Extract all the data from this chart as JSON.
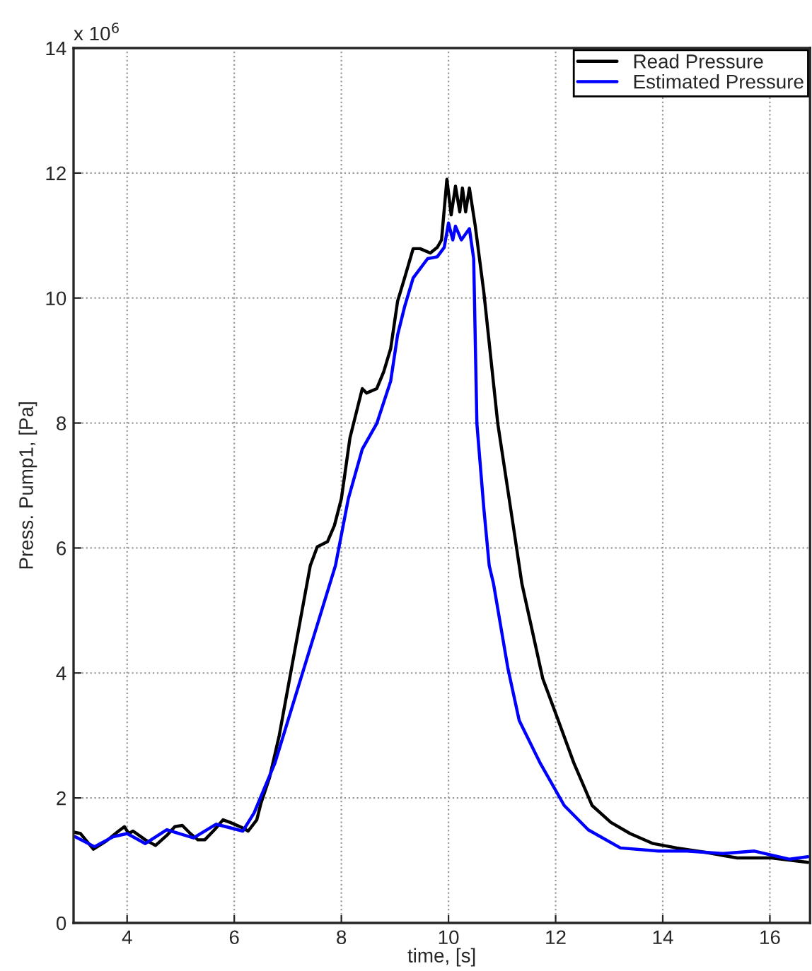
{
  "chart_data": {
    "type": "line",
    "xlabel": "time, [s]",
    "ylabel": "Press. Pump1, [Pa]",
    "annotations": [
      "x 10$^{6}$"
    ],
    "xlim": [
      3,
      16.75
    ],
    "xticks": [
      4,
      6,
      8,
      10,
      12,
      14,
      16
    ],
    "ylim": [
      0,
      14
    ],
    "yticks": [
      0,
      2,
      4,
      6,
      8,
      10,
      12,
      14
    ],
    "grid": true,
    "legend": "top right",
    "line_style": "solid",
    "series": [
      {
        "name": "Read Pressure",
        "color": "#000000",
        "x": [
          3.02,
          3.13,
          3.37,
          3.61,
          3.84,
          3.95,
          4.03,
          4.11,
          4.34,
          4.53,
          4.74,
          4.89,
          5.03,
          5.18,
          5.32,
          5.45,
          5.63,
          5.79,
          5.92,
          6.16,
          6.26,
          6.42,
          6.5,
          6.66,
          6.84,
          7.42,
          7.55,
          7.74,
          7.87,
          8.0,
          8.16,
          8.39,
          8.47,
          8.66,
          8.79,
          8.92,
          9.05,
          9.18,
          9.34,
          9.47,
          9.66,
          9.79,
          9.87,
          9.97,
          10.05,
          10.13,
          10.21,
          10.26,
          10.32,
          10.39,
          10.5,
          10.66,
          10.92,
          11.24,
          11.37,
          11.76,
          12.08,
          12.34,
          12.68,
          13.03,
          13.39,
          13.82,
          14.26,
          14.79,
          15.39,
          16.03,
          16.71
        ],
        "values": [
          1.45,
          1.43,
          1.18,
          1.31,
          1.47,
          1.54,
          1.43,
          1.47,
          1.33,
          1.24,
          1.4,
          1.54,
          1.56,
          1.43,
          1.33,
          1.33,
          1.49,
          1.65,
          1.61,
          1.52,
          1.47,
          1.65,
          1.92,
          2.33,
          3.0,
          5.72,
          6.02,
          6.1,
          6.36,
          6.79,
          7.76,
          8.55,
          8.48,
          8.55,
          8.82,
          9.19,
          9.95,
          10.32,
          10.79,
          10.79,
          10.72,
          10.81,
          10.93,
          11.9,
          11.33,
          11.79,
          11.38,
          11.76,
          11.38,
          11.76,
          11.15,
          10.09,
          7.99,
          6.18,
          5.43,
          3.91,
          3.17,
          2.56,
          1.88,
          1.61,
          1.43,
          1.27,
          1.2,
          1.13,
          1.04,
          1.04,
          0.97
        ]
      },
      {
        "name": "Estimated Pressure",
        "color": "#0000ff",
        "x": [
          3.03,
          3.39,
          3.74,
          4.0,
          4.34,
          4.74,
          5.24,
          5.66,
          6.16,
          6.37,
          6.76,
          7.89,
          8.13,
          8.39,
          8.66,
          8.92,
          9.05,
          9.18,
          9.34,
          9.61,
          9.79,
          9.92,
          10.0,
          10.08,
          10.13,
          10.24,
          10.39,
          10.47,
          10.53,
          10.66,
          10.76,
          10.84,
          11.11,
          11.32,
          11.71,
          12.16,
          12.61,
          13.21,
          13.92,
          14.45,
          15.13,
          15.71,
          16.37,
          16.71
        ],
        "values": [
          1.38,
          1.22,
          1.38,
          1.43,
          1.27,
          1.49,
          1.36,
          1.58,
          1.47,
          1.76,
          2.56,
          5.72,
          6.79,
          7.58,
          7.99,
          8.67,
          9.41,
          9.86,
          10.32,
          10.63,
          10.66,
          10.81,
          11.2,
          10.93,
          11.15,
          10.93,
          11.11,
          10.63,
          7.99,
          6.63,
          5.72,
          5.43,
          4.07,
          3.24,
          2.56,
          1.88,
          1.49,
          1.2,
          1.15,
          1.15,
          1.11,
          1.15,
          1.02,
          1.06
        ]
      }
    ]
  }
}
